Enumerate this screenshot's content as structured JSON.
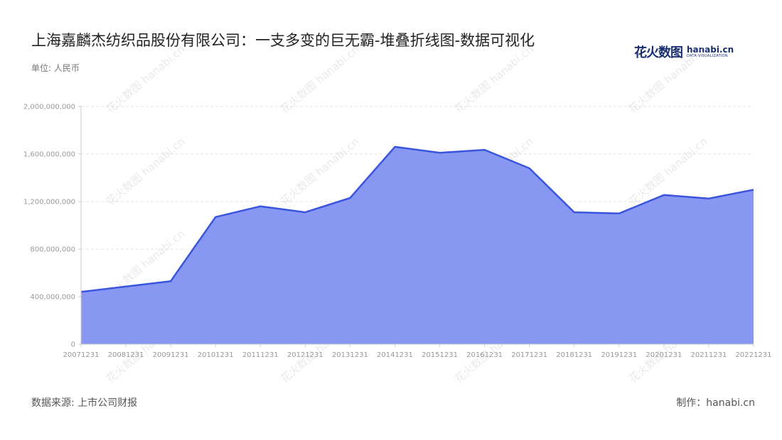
{
  "header": {
    "title": "上海嘉麟杰纺织品股份有限公司：一支多变的巨无霸-堆叠折线图-数据可视化",
    "unit": "单位: 人民币"
  },
  "logo": {
    "main": "花火数图",
    "en": "hanabi.cn",
    "sub": "DATA VISUALIZATION"
  },
  "footer": {
    "source": "数据来源: 上市公司财报",
    "credit": "制作：hanabi.cn"
  },
  "watermark_text": "花火数图 hanabi.cn",
  "colors": {
    "fill": "#8797f2",
    "line": "#3a55dd",
    "grid": "#e0e0e0",
    "axis": "#cccccc"
  },
  "chart_data": {
    "type": "area",
    "title": "上海嘉麟杰纺织品股份有限公司：一支多变的巨无霸-堆叠折线图-数据可视化",
    "ylabel": "单位: 人民币",
    "xlabel": "",
    "ylim": [
      0,
      2000000000
    ],
    "yticks": [
      0,
      400000000,
      800000000,
      1200000000,
      1600000000,
      2000000000
    ],
    "ytick_labels": [
      "0",
      "400,000,000",
      "800,000,000",
      "1,200,000,000",
      "1,600,000,000",
      "2,000,000,000"
    ],
    "grid": true,
    "categories": [
      "20071231",
      "20081231",
      "20091231",
      "20101231",
      "20111231",
      "20121231",
      "20131231",
      "20141231",
      "20151231",
      "20161231",
      "20171231",
      "20181231",
      "20191231",
      "20201231",
      "20211231",
      "20221231"
    ],
    "series": [
      {
        "values": [
          440000000,
          485000000,
          530000000,
          1070000000,
          1160000000,
          1110000000,
          1230000000,
          1660000000,
          1610000000,
          1635000000,
          1480000000,
          1110000000,
          1100000000,
          1255000000,
          1225000000,
          1300000000
        ]
      }
    ]
  }
}
